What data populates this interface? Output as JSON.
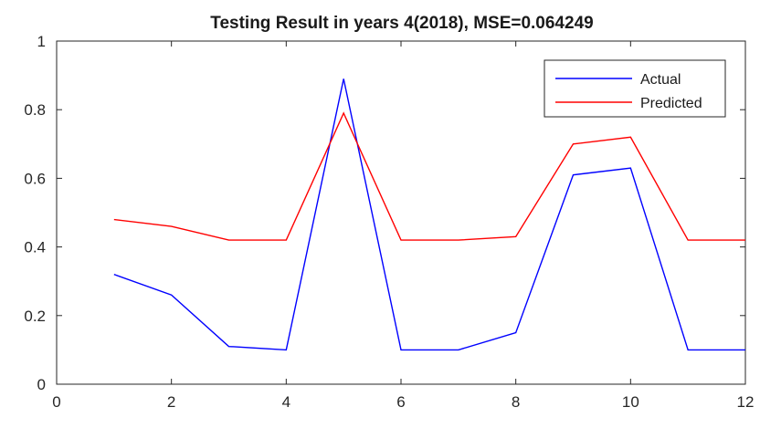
{
  "chart_data": {
    "type": "line",
    "title": "Testing Result in years 4(2018), MSE=0.064249",
    "xlabel": "",
    "ylabel": "",
    "xlim": [
      0,
      12
    ],
    "ylim": [
      0,
      1
    ],
    "x_ticks": [
      0,
      2,
      4,
      6,
      8,
      10,
      12
    ],
    "y_ticks": [
      0,
      0.2,
      0.4,
      0.6,
      0.8,
      1
    ],
    "x_tick_labels": [
      "0",
      "2",
      "4",
      "6",
      "8",
      "10",
      "12"
    ],
    "y_tick_labels": [
      "0",
      "0.2",
      "0.4",
      "0.6",
      "0.8",
      "1"
    ],
    "grid": false,
    "legend_position": "top-right",
    "x": [
      1,
      2,
      3,
      4,
      5,
      6,
      7,
      8,
      9,
      10,
      11,
      12
    ],
    "series": [
      {
        "name": "Actual",
        "color": "#0000ff",
        "values": [
          0.32,
          0.26,
          0.11,
          0.1,
          0.89,
          0.1,
          0.1,
          0.15,
          0.61,
          0.63,
          0.1,
          0.1
        ]
      },
      {
        "name": "Predicted",
        "color": "#ff0000",
        "values": [
          0.48,
          0.46,
          0.42,
          0.42,
          0.79,
          0.42,
          0.42,
          0.43,
          0.7,
          0.72,
          0.42,
          0.42
        ]
      }
    ]
  }
}
